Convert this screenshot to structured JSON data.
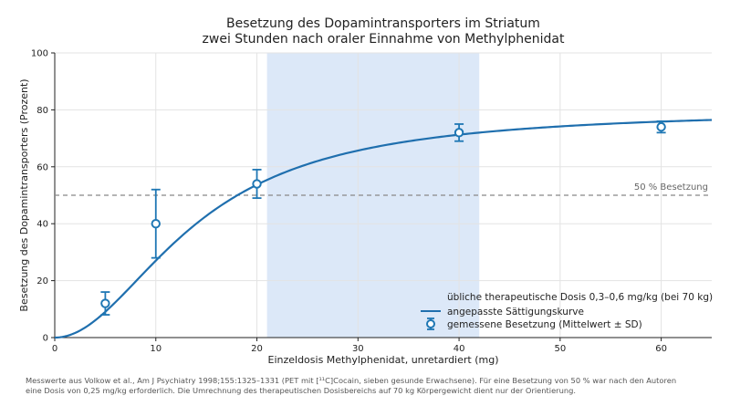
{
  "chart_data": {
    "type": "line",
    "title": "Besetzung des Dopamintransporters im Striatum",
    "subtitle": "zwei Stunden nach oraler Einnahme von Methylphenidat",
    "xlabel": "Einzeldosis Methylphenidat, unretardiert (mg)",
    "ylabel": "Besetzung des Dopamintransporters (Prozent)",
    "xlim": [
      0,
      65
    ],
    "ylim": [
      0,
      100
    ],
    "x_ticks": [
      0,
      10,
      20,
      30,
      40,
      50,
      60
    ],
    "y_ticks": [
      0,
      20,
      40,
      60,
      80,
      100
    ],
    "grid": true,
    "legend_position": "bottom-right",
    "shaded_band": {
      "x_range": [
        21,
        42
      ],
      "color": "#dce8f8",
      "label": "übliche therapeutische Dosis 0,3–0,6 mg/kg (bei 70 kg)"
    },
    "reference_line": {
      "y": 50,
      "label": "50 % Besetzung",
      "color": "#888888"
    },
    "fitted_curve": {
      "name": "angepasste Sättigungskurve",
      "color": "#1f6fae",
      "emax": 80,
      "ed50": 14,
      "hill": 2
    },
    "series": [
      {
        "name": "gemessene Besetzung (Mittelwert ± SD)",
        "color": "#1f77b4",
        "points": [
          {
            "x": 5,
            "y": 12,
            "sd_low": 8,
            "sd_high": 16
          },
          {
            "x": 10,
            "y": 40,
            "sd_low": 28,
            "sd_high": 52
          },
          {
            "x": 20,
            "y": 54,
            "sd_low": 49,
            "sd_high": 59
          },
          {
            "x": 40,
            "y": 72,
            "sd_low": 69,
            "sd_high": 75
          },
          {
            "x": 60,
            "y": 74,
            "sd_low": 72,
            "sd_high": 76
          }
        ]
      }
    ]
  },
  "footnote": {
    "line1": "Messwerte aus Volkow et al., Am J Psychiatry 1998;155:1325–1331 (PET mit [¹¹C]Cocain, sieben gesunde Erwachsene). Für eine Besetzung von 50 % war nach den Autoren",
    "line2": "eine Dosis von 0,25 mg/kg erforderlich. Die Umrechnung des therapeutischen Dosisbereichs auf 70 kg Körpergewicht dient nur der Orientierung."
  }
}
